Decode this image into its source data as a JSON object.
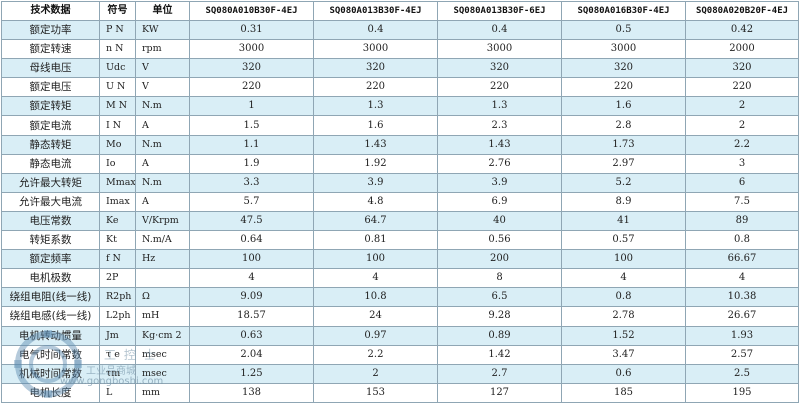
{
  "header": {
    "param": "技术数据",
    "symbol": "符号",
    "unit": "单位",
    "models": [
      "SQ080A010B30F-4EJ",
      "SQ080A013B30F-4EJ",
      "SQ080A013B30F-6EJ",
      "SQ080A016B30F-4EJ",
      "SQ080A020B20F-4EJ"
    ]
  },
  "rows": [
    {
      "name": "额定功率",
      "symbol": "P N",
      "unit": "KW",
      "values": [
        "0.31",
        "0.4",
        "0.4",
        "0.5",
        "0.42"
      ]
    },
    {
      "name": "额定转速",
      "symbol": "n N",
      "unit": "rpm",
      "values": [
        "3000",
        "3000",
        "3000",
        "3000",
        "2000"
      ]
    },
    {
      "name": "母线电压",
      "symbol": "Udc",
      "unit": "V",
      "values": [
        "320",
        "320",
        "320",
        "320",
        "320"
      ]
    },
    {
      "name": "额定电压",
      "symbol": "U N",
      "unit": "V",
      "values": [
        "220",
        "220",
        "220",
        "220",
        "220"
      ]
    },
    {
      "name": "额定转矩",
      "symbol": "M N",
      "unit": "N.m",
      "values": [
        "1",
        "1.3",
        "1.3",
        "1.6",
        "2"
      ]
    },
    {
      "name": "额定电流",
      "symbol": "I N",
      "unit": "A",
      "values": [
        "1.5",
        "1.6",
        "2.3",
        "2.8",
        "2"
      ]
    },
    {
      "name": "静态转矩",
      "symbol": "Mo",
      "unit": "N.m",
      "values": [
        "1.1",
        "1.43",
        "1.43",
        "1.73",
        "2.2"
      ]
    },
    {
      "name": "静态电流",
      "symbol": "Io",
      "unit": "A",
      "values": [
        "1.9",
        "1.92",
        "2.76",
        "2.97",
        "3"
      ]
    },
    {
      "name": "允许最大转矩",
      "symbol": "Mmax",
      "unit": "N.m",
      "values": [
        "3.3",
        "3.9",
        "3.9",
        "5.2",
        "6"
      ]
    },
    {
      "name": "允许最大电流",
      "symbol": "Imax",
      "unit": "A",
      "values": [
        "5.7",
        "4.8",
        "6.9",
        "8.9",
        "7.5"
      ]
    },
    {
      "name": "电压常数",
      "symbol": "Ke",
      "unit": "V/Krpm",
      "values": [
        "47.5",
        "64.7",
        "40",
        "41",
        "89"
      ]
    },
    {
      "name": "转矩系数",
      "symbol": "Kt",
      "unit": "N.m/A",
      "values": [
        "0.64",
        "0.81",
        "0.56",
        "0.57",
        "0.8"
      ]
    },
    {
      "name": "额定频率",
      "symbol": "f N",
      "unit": "Hz",
      "values": [
        "100",
        "100",
        "200",
        "100",
        "66.67"
      ]
    },
    {
      "name": "电机极数",
      "symbol": "2P",
      "unit": "",
      "values": [
        "4",
        "4",
        "8",
        "4",
        "4"
      ]
    },
    {
      "name": "绕组电阻(线一线)",
      "symbol": "R2ph",
      "unit": "Ω",
      "values": [
        "9.09",
        "10.8",
        "6.5",
        "0.8",
        "10.38"
      ]
    },
    {
      "name": "绕组电感(线一线)",
      "symbol": "L2ph",
      "unit": "mH",
      "values": [
        "18.57",
        "24",
        "9.28",
        "2.78",
        "26.67"
      ]
    },
    {
      "name": "电机转动惯量",
      "symbol": "Jm",
      "unit": "Kg·cm 2",
      "values": [
        "0.63",
        "0.97",
        "0.89",
        "1.52",
        "1.93"
      ]
    },
    {
      "name": "电气时间常数",
      "symbol": "τ e",
      "unit": "msec",
      "values": [
        "2.04",
        "2.2",
        "1.42",
        "3.47",
        "2.57"
      ]
    },
    {
      "name": "机械时间常数",
      "symbol": "τm",
      "unit": "msec",
      "values": [
        "1.25",
        "2",
        "2.7",
        "0.6",
        "2.5"
      ]
    },
    {
      "name": "电机长度",
      "symbol": "L",
      "unit": "mm",
      "values": [
        "138",
        "153",
        "127",
        "185",
        "195"
      ]
    }
  ],
  "watermark": {
    "line1": "工 控 士",
    "line2": "工业品商城",
    "line3": "www.gongboshi.com",
    "colors": {
      "text": "#7896aa",
      "circle": "#5a8ab0"
    }
  },
  "colors": {
    "shade": "#d9eef6",
    "border": "#8fa6b4"
  }
}
